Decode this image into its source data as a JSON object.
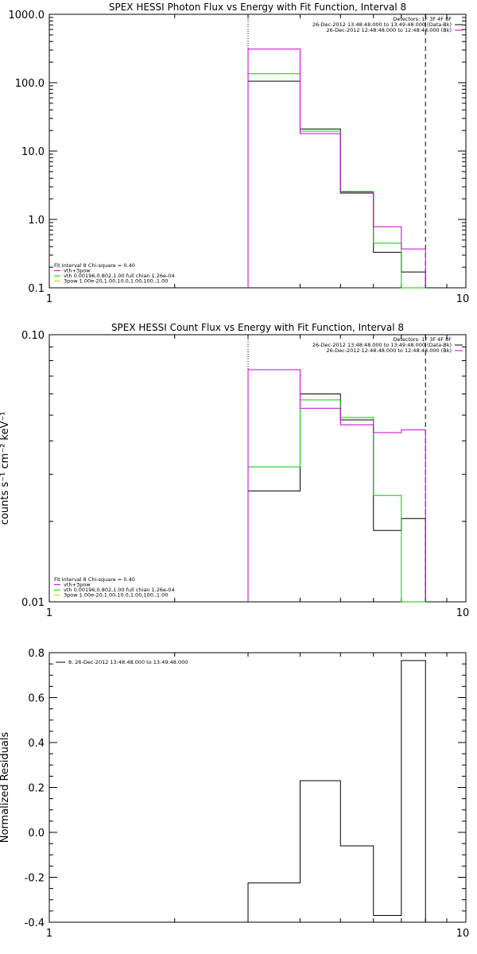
{
  "chart_data": [
    {
      "type": "line",
      "step": true,
      "title": "SPEX HESSI Photon Flux vs Energy with Fit Function, Interval 8",
      "xlabel": "",
      "ylabel": "",
      "xscale": "log",
      "yscale": "log",
      "xlim": [
        1,
        10
      ],
      "ylim": [
        0.1,
        1000
      ],
      "xticks": [
        "1",
        "10"
      ],
      "yticks": [
        {
          "v": 0.1,
          "label": "0.1"
        },
        {
          "v": 1,
          "label": "1.0"
        },
        {
          "v": 10,
          "label": "10.0"
        },
        {
          "v": 100,
          "label": "100.0"
        },
        {
          "v": 1000,
          "label": "1000.0"
        }
      ],
      "edges": [
        3,
        4,
        5,
        6,
        7,
        8
      ],
      "series": [
        {
          "color": "#000000",
          "values": [
            105,
            21,
            2.5,
            0.33,
            0.17
          ]
        },
        {
          "color": "#00cc00",
          "values": [
            135,
            19.5,
            2.55,
            0.45,
            0.1
          ]
        },
        {
          "color": "#cc00cc",
          "values": [
            310,
            18,
            2.4,
            0.78,
            0.37
          ]
        }
      ],
      "vlines": [
        {
          "x": 3,
          "style": "dotted"
        },
        {
          "x": 8,
          "style": "dashed"
        }
      ],
      "legend_tr": [
        {
          "text": "Detectors: 1F 3F 4F 8F",
          "color": "#000000"
        },
        {
          "text": "26-Dec-2012 13:48:48.000 to 13:49:48.000 (Data-Bk)",
          "color": "#000000"
        },
        {
          "text": "26-Dec-2012 12:48:48.000 to 12:48:48.000 (Bk)",
          "color": "#cc00cc"
        }
      ],
      "legend_bl": [
        {
          "text": "Fit Interval 8   Chi-square = 0.40",
          "color": "#000000"
        },
        {
          "text": "vth+3pow",
          "color": "#cc00cc"
        },
        {
          "text": "vth 0.00196,0.802,1.00   full chian 1.26e-04",
          "color": "#00cc00"
        },
        {
          "text": "3pow 1.00e-20,1.00,10.0,1.00,100.,1.00",
          "color": "#cccc00"
        }
      ]
    },
    {
      "type": "line",
      "step": true,
      "title": "SPEX HESSI Count Flux vs Energy with Fit Function, Interval 8",
      "xlabel": "",
      "ylabel": "counts s⁻¹ cm⁻² keV⁻¹",
      "xscale": "log",
      "yscale": "log",
      "xlim": [
        1,
        10
      ],
      "ylim": [
        0.01,
        0.1
      ],
      "xticks": [
        "1",
        "10"
      ],
      "yticks": [
        {
          "v": 0.01,
          "label": "0.01"
        },
        {
          "v": 0.1,
          "label": "0.10"
        }
      ],
      "edges": [
        3,
        4,
        5,
        6,
        7,
        8
      ],
      "series": [
        {
          "color": "#000000",
          "values": [
            0.026,
            0.06,
            0.048,
            0.0185,
            0.0205
          ]
        },
        {
          "color": "#00cc00",
          "values": [
            0.032,
            0.057,
            0.049,
            0.025,
            0.01
          ]
        },
        {
          "color": "#cc00cc",
          "values": [
            0.074,
            0.053,
            0.046,
            0.043,
            0.044
          ]
        }
      ],
      "vlines": [
        {
          "x": 3,
          "style": "dotted"
        },
        {
          "x": 8,
          "style": "dashed"
        }
      ],
      "legend_tr": [
        {
          "text": "Detectors: 1F 3F 4F 8F",
          "color": "#000000"
        },
        {
          "text": "26-Dec-2012 13:48:48.000 to 13:49:48.000 (Data-Bk)",
          "color": "#000000"
        },
        {
          "text": "26-Dec-2012 12:48:48.000 to 12:48:48.000 (Bk)",
          "color": "#cc00cc"
        }
      ],
      "legend_bl": [
        {
          "text": "Fit Interval 8   Chi-square = 0.40",
          "color": "#000000"
        },
        {
          "text": "vth+3pow",
          "color": "#cc00cc"
        },
        {
          "text": "vth 0.00196,0.802,1.00   full chian 1.26e-04",
          "color": "#00cc00"
        },
        {
          "text": "3pow 1.00e-20,1.00,10.0,1.00,100.,1.00",
          "color": "#cccc00"
        }
      ]
    },
    {
      "type": "line",
      "step": true,
      "title": "",
      "xlabel": "",
      "ylabel": "Normalized Residuals",
      "xscale": "log",
      "yscale": "linear",
      "xlim": [
        1,
        10
      ],
      "ylim": [
        -0.4,
        0.8
      ],
      "xticks": [
        "1",
        "10"
      ],
      "yticks": [
        {
          "v": -0.4,
          "label": "-0.4"
        },
        {
          "v": -0.2,
          "label": "-0.2"
        },
        {
          "v": 0.0,
          "label": "0.0"
        },
        {
          "v": 0.2,
          "label": "0.2"
        },
        {
          "v": 0.4,
          "label": "0.4"
        },
        {
          "v": 0.6,
          "label": "0.6"
        },
        {
          "v": 0.8,
          "label": "0.8"
        }
      ],
      "edges": [
        3,
        4,
        5,
        6,
        7,
        8
      ],
      "series": [
        {
          "color": "#000000",
          "values": [
            -0.225,
            0.23,
            -0.06,
            -0.37,
            0.765
          ]
        }
      ],
      "vlines": [],
      "legend_tl": [
        {
          "text": "8, 26-Dec-2012 13:48:48.000 to 13:49:48.000",
          "color": "#000000"
        }
      ],
      "legend_tr": [],
      "legend_bl": []
    }
  ]
}
